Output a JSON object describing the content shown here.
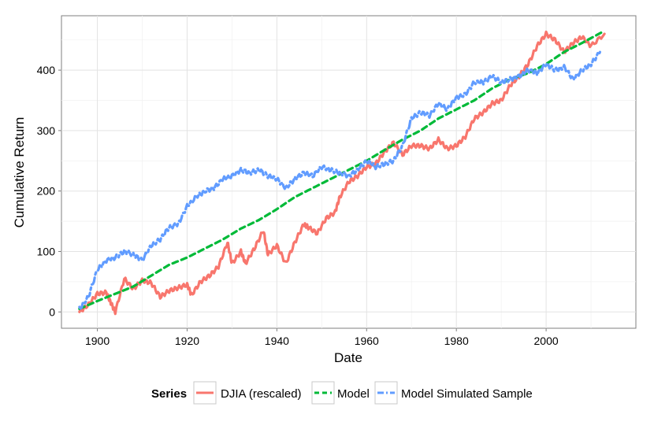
{
  "chart_data": {
    "type": "line",
    "title": "",
    "xlabel": "Date",
    "ylabel": "Cumulative Return",
    "xlim": [
      1892,
      2020
    ],
    "ylim": [
      -27,
      490
    ],
    "grid": true,
    "x_ticks": [
      1900,
      1920,
      1940,
      1960,
      1980,
      2000
    ],
    "y_ticks": [
      0,
      100,
      200,
      300,
      400
    ],
    "legend": {
      "title": "Series",
      "position": "bottom"
    },
    "series": [
      {
        "name": "DJIA (rescaled)",
        "color": "#f8766d",
        "dash": "solid",
        "x": [
          1896,
          1898,
          1900,
          1902,
          1903,
          1904,
          1906,
          1908,
          1910,
          1912,
          1914,
          1916,
          1918,
          1920,
          1921,
          1923,
          1925,
          1927,
          1929,
          1930,
          1932,
          1933,
          1935,
          1937,
          1938,
          1940,
          1942,
          1944,
          1946,
          1947,
          1949,
          1951,
          1953,
          1954,
          1956,
          1958,
          1960,
          1962,
          1964,
          1966,
          1968,
          1970,
          1972,
          1974,
          1976,
          1978,
          1980,
          1982,
          1984,
          1986,
          1988,
          1990,
          1992,
          1994,
          1996,
          1998,
          2000,
          2002,
          2004,
          2006,
          2008,
          2010,
          2013
        ],
        "values": [
          0,
          12,
          30,
          32,
          15,
          0,
          55,
          38,
          52,
          48,
          25,
          35,
          40,
          45,
          28,
          50,
          60,
          75,
          115,
          80,
          100,
          80,
          105,
          135,
          95,
          110,
          80,
          115,
          145,
          140,
          130,
          155,
          165,
          190,
          215,
          225,
          240,
          245,
          265,
          280,
          260,
          275,
          275,
          270,
          285,
          270,
          275,
          290,
          320,
          330,
          345,
          350,
          375,
          390,
          410,
          440,
          460,
          450,
          430,
          445,
          455,
          440,
          460
        ]
      },
      {
        "name": "Model",
        "color": "#00ba38",
        "dash": "dashed",
        "x": [
          1896,
          1900,
          1904,
          1908,
          1912,
          1916,
          1920,
          1924,
          1928,
          1932,
          1936,
          1940,
          1944,
          1948,
          1952,
          1956,
          1960,
          1964,
          1968,
          1972,
          1976,
          1980,
          1984,
          1988,
          1992,
          1996,
          2000,
          2004,
          2008,
          2013
        ],
        "values": [
          5,
          18,
          30,
          42,
          60,
          78,
          90,
          105,
          120,
          138,
          152,
          170,
          190,
          205,
          220,
          235,
          250,
          268,
          285,
          300,
          320,
          335,
          350,
          370,
          385,
          395,
          410,
          430,
          445,
          465
        ]
      },
      {
        "name": "Model Simulated Sample",
        "color": "#619cff",
        "dash": "dashdot",
        "x": [
          1896,
          1898,
          1900,
          1902,
          1904,
          1906,
          1908,
          1910,
          1912,
          1914,
          1916,
          1918,
          1920,
          1922,
          1924,
          1926,
          1928,
          1930,
          1932,
          1934,
          1936,
          1938,
          1940,
          1942,
          1944,
          1946,
          1948,
          1950,
          1952,
          1954,
          1956,
          1958,
          1960,
          1962,
          1964,
          1966,
          1968,
          1970,
          1972,
          1974,
          1976,
          1978,
          1980,
          1982,
          1984,
          1986,
          1988,
          1990,
          1992,
          1994,
          1996,
          1998,
          2000,
          2002,
          2004,
          2006,
          2008,
          2010,
          2012
        ],
        "values": [
          5,
          25,
          70,
          85,
          90,
          100,
          95,
          85,
          110,
          120,
          140,
          145,
          175,
          190,
          200,
          205,
          220,
          225,
          235,
          230,
          235,
          225,
          220,
          205,
          220,
          230,
          225,
          240,
          235,
          230,
          225,
          235,
          250,
          240,
          245,
          250,
          275,
          320,
          330,
          325,
          345,
          335,
          355,
          360,
          380,
          380,
          390,
          380,
          385,
          390,
          400,
          395,
          410,
          400,
          405,
          385,
          400,
          410,
          430
        ]
      }
    ]
  }
}
